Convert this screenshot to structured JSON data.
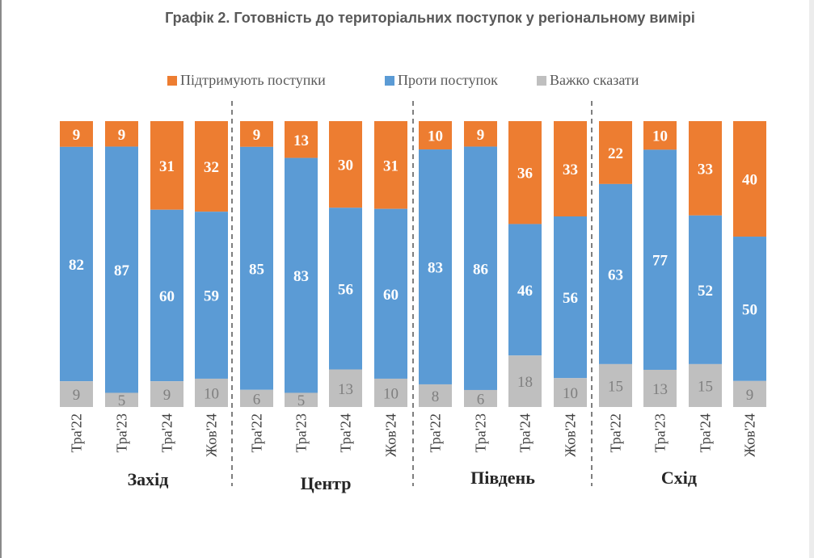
{
  "title": "Графік 2. Готовність до територіальних поступок у регіональному вимірі",
  "chart_data": {
    "type": "bar",
    "stacked": true,
    "categories": [
      "Тра'22",
      "Тра'23",
      "Тра'24",
      "Жов'24",
      "Тра'22",
      "Тра'23",
      "Тра'24",
      "Жов'24",
      "Тра'22",
      "Тра'23",
      "Тра'24",
      "Жов'24",
      "Тра'22",
      "Тра'23",
      "Тра'24",
      "Жов'24"
    ],
    "groups": [
      {
        "label": "Захід"
      },
      {
        "label": "Центр"
      },
      {
        "label": "Південь"
      },
      {
        "label": "Схід"
      }
    ],
    "series": [
      {
        "name": "Підтримують поступки",
        "color": "#ed7d31",
        "values": [
          9,
          9,
          31,
          32,
          9,
          13,
          30,
          31,
          10,
          9,
          36,
          33,
          22,
          10,
          33,
          40
        ]
      },
      {
        "name": "Проти поступок",
        "color": "#5b9bd5",
        "values": [
          82,
          87,
          60,
          59,
          85,
          83,
          56,
          60,
          83,
          86,
          46,
          56,
          63,
          77,
          52,
          50
        ]
      },
      {
        "name": "Важко сказати",
        "color": "#bfbfbf",
        "values": [
          9,
          5,
          9,
          10,
          6,
          5,
          13,
          10,
          8,
          6,
          18,
          10,
          15,
          13,
          15,
          9
        ]
      }
    ],
    "ylim": [
      0,
      100
    ],
    "legend_position": "top",
    "grid": false
  }
}
